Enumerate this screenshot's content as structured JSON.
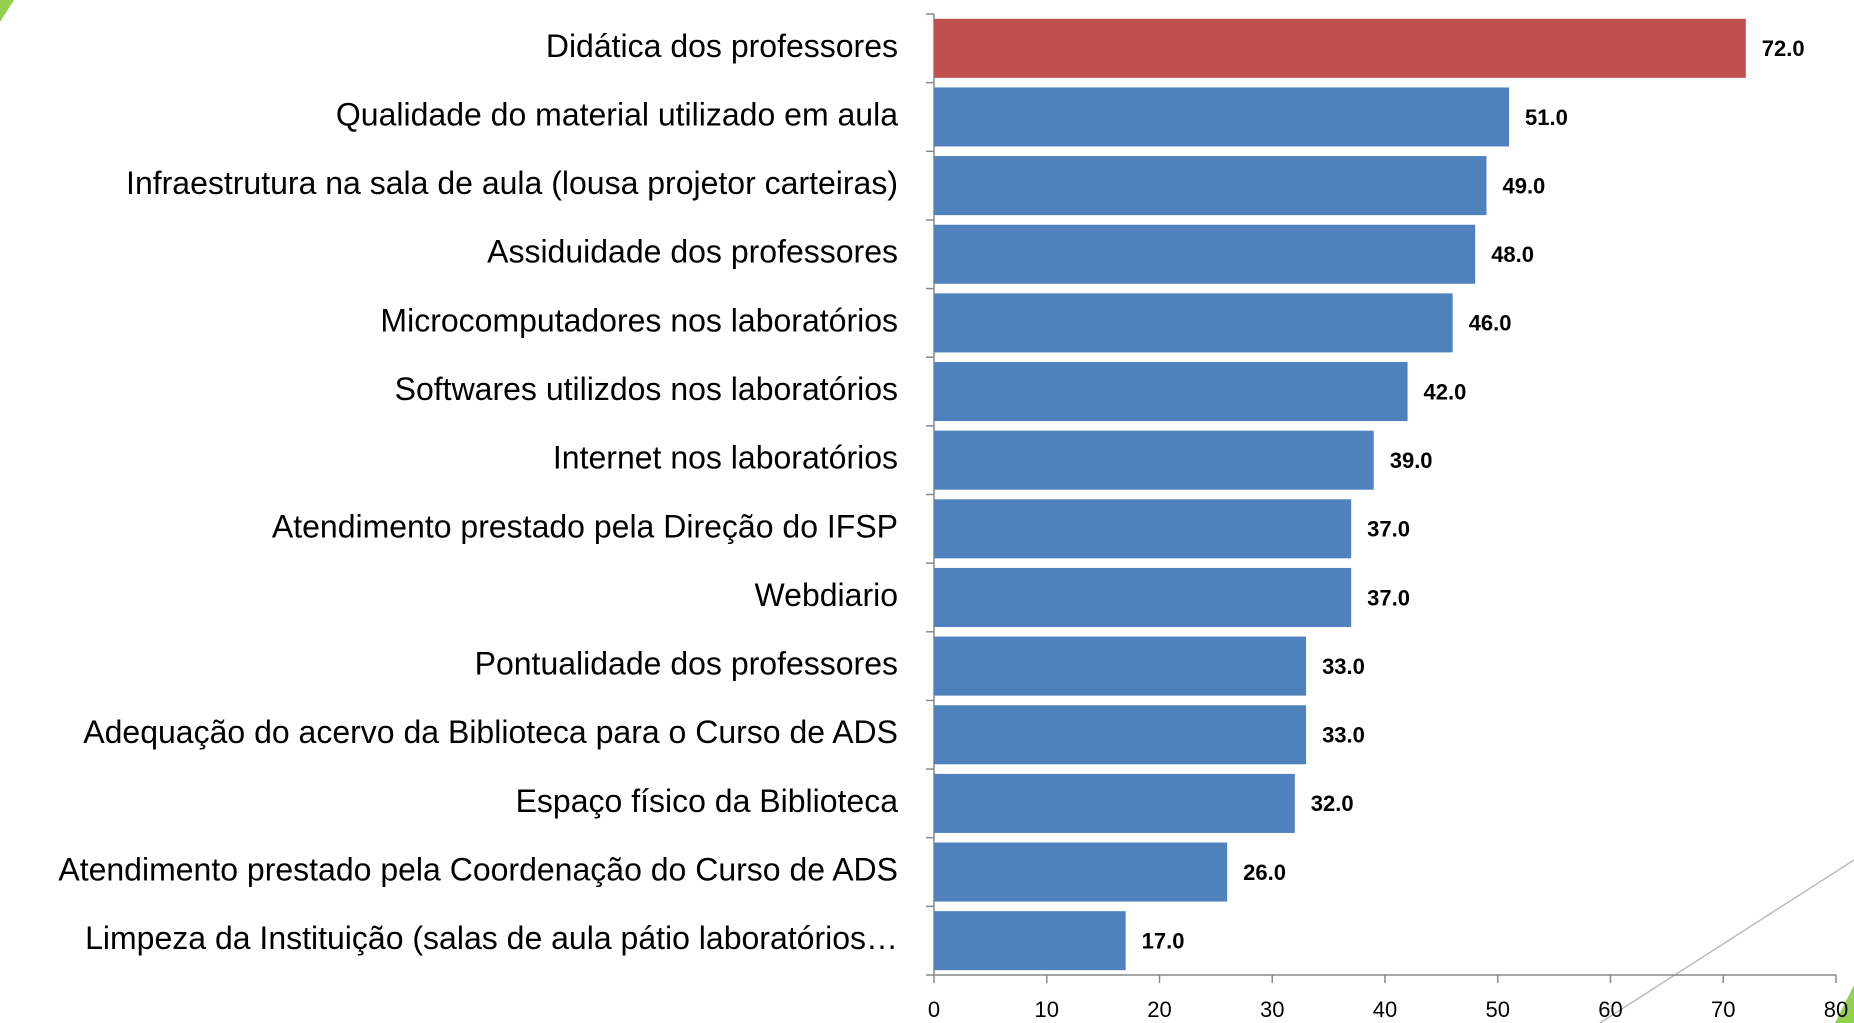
{
  "chart_data": {
    "type": "barh",
    "categories": [
      "Didática dos professores",
      "Qualidade do material utilizado em aula",
      "Infraestrutura na sala de aula (lousa projetor carteiras)",
      "Assiduidade dos professores",
      "Microcomputadores nos laboratórios",
      "Softwares utilizdos nos laboratórios",
      "Internet nos laboratórios",
      "Atendimento prestado pela Direção do IFSP",
      "Webdiario",
      "Pontualidade dos professores",
      "Adequação do acervo da Biblioteca para o Curso de ADS",
      "Espaço físico da Biblioteca",
      "Atendimento prestado pela Coordenação do Curso de ADS",
      "Limpeza da Instituição (salas de aula pátio laboratórios…"
    ],
    "values": [
      72,
      51,
      49,
      48,
      46,
      42,
      39,
      37,
      37,
      33,
      33,
      32,
      26,
      17
    ],
    "value_labels": [
      "72.0",
      "51.0",
      "49.0",
      "48.0",
      "46.0",
      "42.0",
      "39.0",
      "37.0",
      "37.0",
      "33.0",
      "33.0",
      "32.0",
      "26.0",
      "17.0"
    ],
    "colors": [
      "#c0504d",
      "#4f81bd",
      "#4f81bd",
      "#4f81bd",
      "#4f81bd",
      "#4f81bd",
      "#4f81bd",
      "#4f81bd",
      "#4f81bd",
      "#4f81bd",
      "#4f81bd",
      "#4f81bd",
      "#4f81bd",
      "#4f81bd"
    ],
    "xlim": [
      0,
      80
    ],
    "xticks": [
      0,
      10,
      20,
      30,
      40,
      50,
      60,
      70,
      80
    ]
  }
}
